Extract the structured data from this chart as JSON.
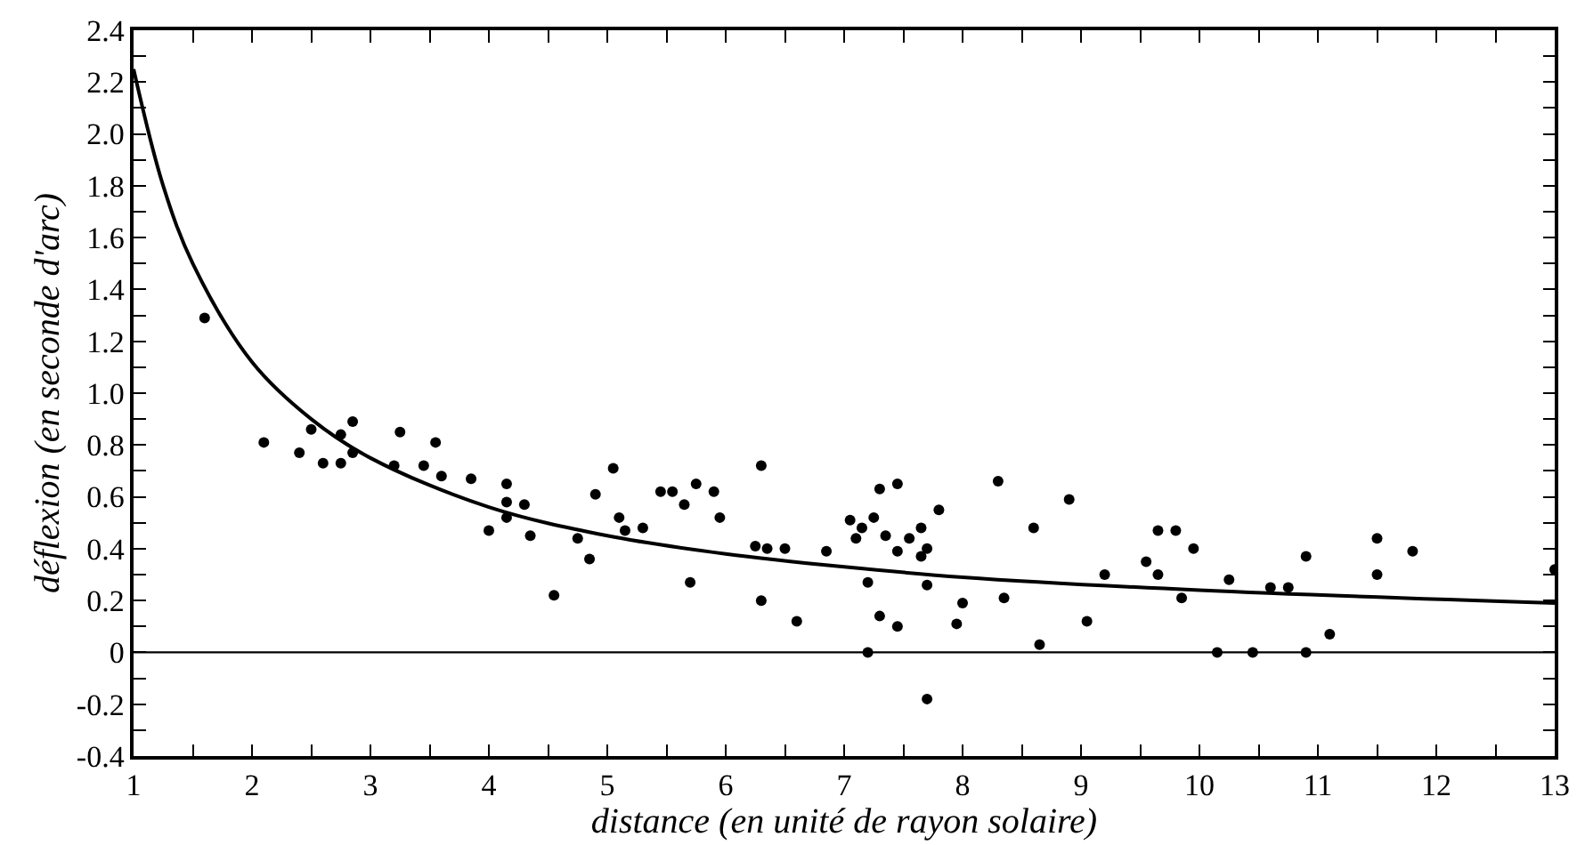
{
  "chart_data": {
    "type": "scatter",
    "xlabel": "distance (en unité de rayon solaire)",
    "ylabel": "déflexion (en seconde d'arc)",
    "xlim": [
      1,
      13
    ],
    "ylim": [
      -0.4,
      2.4
    ],
    "xticks": [
      1,
      {
        "value": 1.5,
        "label": null
      },
      2,
      {
        "value": 2.5,
        "label": null
      },
      3,
      {
        "value": 3.5,
        "label": null
      },
      4,
      {
        "value": 4.5,
        "label": null
      },
      5,
      {
        "value": 5.5,
        "label": null
      },
      6,
      {
        "value": 6.5,
        "label": null
      },
      7,
      {
        "value": 7.5,
        "label": null
      },
      8,
      {
        "value": 8.5,
        "label": null
      },
      9,
      {
        "value": 9.5,
        "label": null
      },
      10,
      {
        "value": 10.5,
        "label": null
      },
      11,
      {
        "value": 11.5,
        "label": null
      },
      12,
      {
        "value": 12.5,
        "label": null
      },
      13
    ],
    "yticks": [
      -0.4,
      {
        "value": -0.3,
        "label": null
      },
      -0.2,
      {
        "value": -0.1,
        "label": null
      },
      0,
      {
        "value": 0.1,
        "label": null
      },
      0.2,
      {
        "value": 0.3,
        "label": null
      },
      0.4,
      {
        "value": 0.5,
        "label": null
      },
      0.6,
      {
        "value": 0.7,
        "label": null
      },
      0.8,
      {
        "value": 0.9,
        "label": null
      },
      {
        "value": 1.0,
        "label": "1.0"
      },
      {
        "value": 1.1,
        "label": null
      },
      1.2,
      {
        "value": 1.3,
        "label": null
      },
      1.4,
      {
        "value": 1.5,
        "label": null
      },
      1.6,
      {
        "value": 1.7,
        "label": null
      },
      1.8,
      {
        "value": 1.9,
        "label": null
      },
      {
        "value": 2.0,
        "label": "2.0"
      },
      {
        "value": 2.1,
        "label": null
      },
      2.2,
      {
        "value": 2.3,
        "label": null
      },
      2.4
    ],
    "ref_lines": [
      {
        "axis": "y",
        "value": 0,
        "color": "#000000"
      }
    ],
    "series": [
      {
        "marker": "circle",
        "color": "#000000",
        "x": [
          1.6,
          2.1,
          2.4,
          2.5,
          2.6,
          2.75,
          2.75,
          2.85,
          2.85,
          3.2,
          3.25,
          3.45,
          3.55,
          3.6,
          3.85,
          4.0,
          4.15,
          4.15,
          4.15,
          4.3,
          4.35,
          4.55,
          4.75,
          4.85,
          4.9,
          5.05,
          5.1,
          5.15,
          5.3,
          5.45,
          5.55,
          5.65,
          5.7,
          5.75,
          5.9,
          5.95,
          6.25,
          6.3,
          6.3,
          6.35,
          6.5,
          6.6,
          6.85,
          7.05,
          7.1,
          7.15,
          7.2,
          7.2,
          7.25,
          7.3,
          7.3,
          7.35,
          7.45,
          7.45,
          7.45,
          7.55,
          7.65,
          7.65,
          7.7,
          7.7,
          7.7,
          7.8,
          7.95,
          8.0,
          8.3,
          8.35,
          8.6,
          8.65,
          8.9,
          9.05,
          9.2,
          9.55,
          9.65,
          9.65,
          9.8,
          9.85,
          9.95,
          10.15,
          10.25,
          10.45,
          10.6,
          10.75,
          10.9,
          10.9,
          11.1,
          11.5,
          11.5,
          11.8,
          13.0
        ],
        "values": [
          1.29,
          0.81,
          0.77,
          0.86,
          0.73,
          0.84,
          0.73,
          0.89,
          0.77,
          0.72,
          0.85,
          0.72,
          0.81,
          0.68,
          0.67,
          0.47,
          0.65,
          0.58,
          0.52,
          0.57,
          0.45,
          0.22,
          0.44,
          0.36,
          0.61,
          0.71,
          0.52,
          0.47,
          0.48,
          0.62,
          0.62,
          0.57,
          0.27,
          0.65,
          0.62,
          0.52,
          0.41,
          0.72,
          0.2,
          0.4,
          0.4,
          0.12,
          0.39,
          0.51,
          0.44,
          0.48,
          0.27,
          0.0,
          0.52,
          0.63,
          0.14,
          0.45,
          0.39,
          0.1,
          0.65,
          0.44,
          0.48,
          0.37,
          0.4,
          0.26,
          -0.18,
          0.55,
          0.11,
          0.19,
          0.66,
          0.21,
          0.48,
          0.03,
          0.59,
          0.12,
          0.3,
          0.35,
          0.47,
          0.3,
          0.47,
          0.21,
          0.4,
          0.0,
          0.28,
          0.0,
          0.25,
          0.25,
          0.37,
          0.0,
          0.07,
          0.44,
          0.3,
          0.39,
          0.32
        ]
      },
      {
        "type": "line",
        "marker": "none",
        "line_style": "solid",
        "color": "#000000",
        "x": [
          1,
          1.25,
          1.5,
          2,
          2.5,
          3,
          4,
          5,
          6,
          7,
          8,
          10,
          13
        ],
        "values": [
          2.25,
          1.8,
          1.5,
          1.12,
          0.9,
          0.75,
          0.56,
          0.45,
          0.38,
          0.33,
          0.29,
          0.24,
          0.19
        ]
      }
    ]
  }
}
